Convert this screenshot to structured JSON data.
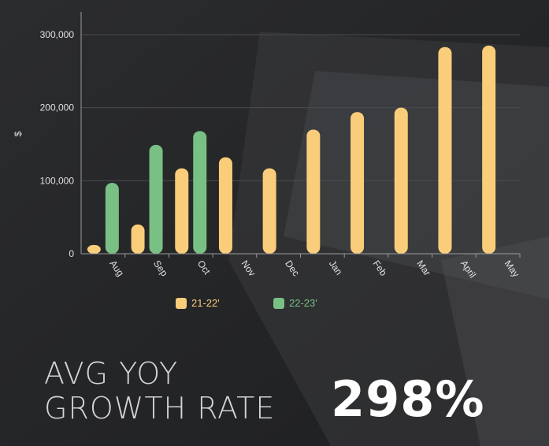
{
  "chart_data": {
    "type": "bar",
    "categories": [
      "Aug",
      "Sep",
      "Oct",
      "Nov",
      "Dec",
      "Jan",
      "Feb",
      "Mar",
      "April",
      "May"
    ],
    "series": [
      {
        "name": "21-22'",
        "color": "#f9cd7a",
        "values": [
          12000,
          40000,
          117000,
          132000,
          117000,
          170000,
          194000,
          200000,
          283000,
          285000
        ]
      },
      {
        "name": "22-23'",
        "color": "#78c083",
        "values": [
          97000,
          149000,
          168000,
          null,
          null,
          null,
          null,
          null,
          null,
          null
        ]
      }
    ],
    "ylabel": "$",
    "ylim": [
      0,
      300000
    ],
    "yticks": [
      0,
      100000,
      200000,
      300000
    ],
    "ytick_labels": [
      "0",
      "100,000",
      "200,000",
      "300,000"
    ],
    "grid": true,
    "legend_placement": "bottom"
  },
  "kpi": {
    "title_line1": "AVG YOY",
    "title_line2": "GROWTH RATE",
    "value": "298%"
  },
  "colors": {
    "background": "#232426",
    "axis": "#9a9b9d",
    "text": "#e0e0e0"
  }
}
